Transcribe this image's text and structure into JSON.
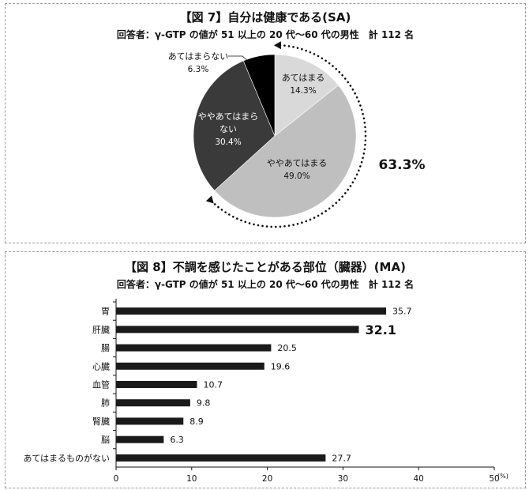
{
  "chart_data": [
    {
      "type": "pie",
      "title": "【図 7】自分は健康である(SA)",
      "subtitle": "回答者：γ-GTP の値が 51 以上の 20 代～60 代の男性　計 112 名",
      "slices": [
        {
          "label": "あてはまる",
          "value": 14.3,
          "value_label": "14.3%",
          "color": "#d9d9d9",
          "text_color": "#111111"
        },
        {
          "label": "ややあてはまる",
          "value": 49.0,
          "value_label": "49.0%",
          "color": "#bfbfbf",
          "text_color": "#111111"
        },
        {
          "label": "ややあてはまらない",
          "value": 30.4,
          "value_label": "30.4%",
          "color": "#3a3a3a",
          "text_color": "#ffffff"
        },
        {
          "label": "あてはまらない",
          "value": 6.3,
          "value_label": "6.3%",
          "color": "#000000",
          "text_color": "#111111"
        }
      ],
      "annotation": "63.3%"
    },
    {
      "type": "bar",
      "orientation": "horizontal",
      "title": "【図 8】不調を感じたことがある部位（臓器）(MA)",
      "subtitle": "回答者：γ-GTP の値が 51 以上の 20 代～60 代の男性　計 112 名",
      "categories": [
        "胃",
        "肝臓",
        "腸",
        "心臓",
        "血管",
        "肺",
        "腎臓",
        "脳",
        "あてはまるものがない"
      ],
      "values": [
        35.7,
        32.1,
        20.5,
        19.6,
        10.7,
        9.8,
        8.9,
        6.3,
        27.7
      ],
      "value_labels": [
        "35.7",
        "32.1",
        "20.5",
        "19.6",
        "10.7",
        "9.8",
        "8.9",
        "6.3",
        "27.7"
      ],
      "highlight": "肝臓",
      "xlim": [
        0,
        50
      ],
      "xticks": [
        "0",
        "10",
        "20",
        "30",
        "40",
        "50"
      ],
      "unit": "(%)",
      "bar_color": "#1a1a1a"
    }
  ]
}
